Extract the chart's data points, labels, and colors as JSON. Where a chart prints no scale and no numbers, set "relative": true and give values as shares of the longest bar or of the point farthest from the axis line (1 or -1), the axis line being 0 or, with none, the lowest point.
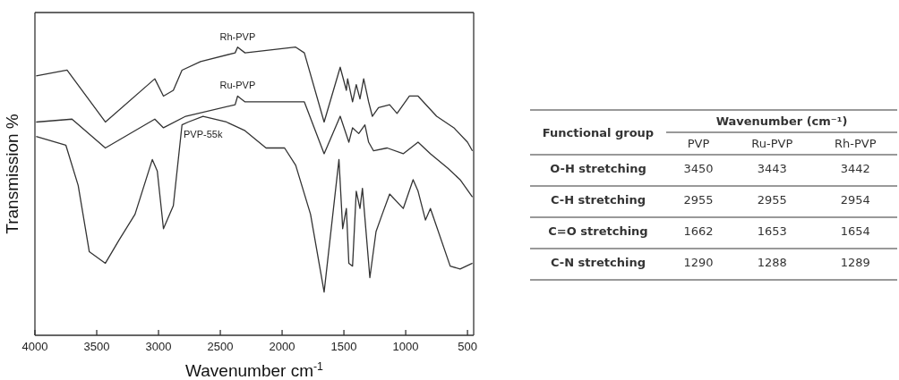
{
  "chart_data": [
    {
      "type": "line",
      "relative": true,
      "xlabel": "Wavenumber cm$^{-1}$",
      "ylabel": "Transmission %",
      "xlim": [
        4000,
        450
      ],
      "xticks": [
        4000,
        3500,
        3000,
        2500,
        2000,
        1500,
        1000,
        500
      ],
      "marker": "none",
      "line_style": "solid",
      "series": [
        {
          "name": "Rh-PVP",
          "color": "#333333",
          "x": [
            3990,
            3740,
            3430,
            3030,
            2960,
            2880,
            2810,
            2660,
            2380,
            2360,
            2300,
            1890,
            1820,
            1660,
            1530,
            1480,
            1470,
            1430,
            1400,
            1370,
            1340,
            1300,
            1270,
            1220,
            1130,
            1070,
            970,
            900,
            750,
            610,
            500,
            460
          ],
          "values": [
            0.9,
            0.92,
            0.74,
            0.89,
            0.83,
            0.85,
            0.92,
            0.95,
            0.98,
            1.0,
            0.98,
            1.0,
            0.98,
            0.74,
            0.93,
            0.85,
            0.89,
            0.81,
            0.87,
            0.82,
            0.89,
            0.81,
            0.76,
            0.79,
            0.8,
            0.77,
            0.83,
            0.83,
            0.76,
            0.72,
            0.67,
            0.64
          ]
        },
        {
          "name": "Ru-PVP",
          "color": "#333333",
          "x": [
            3990,
            3700,
            3430,
            3030,
            2960,
            2780,
            2380,
            2360,
            2300,
            1890,
            1820,
            1660,
            1530,
            1460,
            1430,
            1380,
            1330,
            1300,
            1260,
            1150,
            1020,
            900,
            800,
            660,
            560,
            460
          ],
          "values": [
            0.74,
            0.75,
            0.65,
            0.75,
            0.72,
            0.76,
            0.8,
            0.83,
            0.81,
            0.81,
            0.81,
            0.63,
            0.76,
            0.67,
            0.72,
            0.7,
            0.73,
            0.67,
            0.64,
            0.65,
            0.63,
            0.67,
            0.63,
            0.58,
            0.54,
            0.48
          ]
        },
        {
          "name": "PVP-55k",
          "color": "#333333",
          "x": [
            3990,
            3750,
            3650,
            3560,
            3430,
            3320,
            3190,
            3050,
            3010,
            2960,
            2880,
            2810,
            2760,
            2640,
            2450,
            2300,
            2130,
            1980,
            1890,
            1770,
            1660,
            1540,
            1510,
            1480,
            1460,
            1430,
            1400,
            1370,
            1350,
            1290,
            1240,
            1190,
            1130,
            1020,
            940,
            900,
            840,
            800,
            640,
            560,
            460
          ],
          "values": [
            0.69,
            0.66,
            0.52,
            0.29,
            0.25,
            0.33,
            0.42,
            0.61,
            0.57,
            0.37,
            0.45,
            0.73,
            0.74,
            0.76,
            0.74,
            0.71,
            0.65,
            0.65,
            0.59,
            0.42,
            0.15,
            0.61,
            0.37,
            0.44,
            0.25,
            0.24,
            0.5,
            0.44,
            0.51,
            0.2,
            0.36,
            0.42,
            0.49,
            0.44,
            0.54,
            0.5,
            0.4,
            0.44,
            0.24,
            0.23,
            0.25
          ]
        }
      ]
    },
    {
      "type": "other",
      "xlabel": "Functional group",
      "title": "Wavenumber (cm⁻¹)",
      "categories": [
        "O-H stretching",
        "C-H stretching",
        "C=O stretching",
        "C-N stretching"
      ],
      "data_labels": true,
      "series": [
        {
          "name": "PVP",
          "values": [
            3450,
            2955,
            1662,
            1290
          ]
        },
        {
          "name": "Ru-PVP",
          "values": [
            3443,
            2955,
            1653,
            1288
          ]
        },
        {
          "name": "Rh-PVP",
          "values": [
            3442,
            2954,
            1654,
            1289
          ]
        }
      ]
    }
  ]
}
